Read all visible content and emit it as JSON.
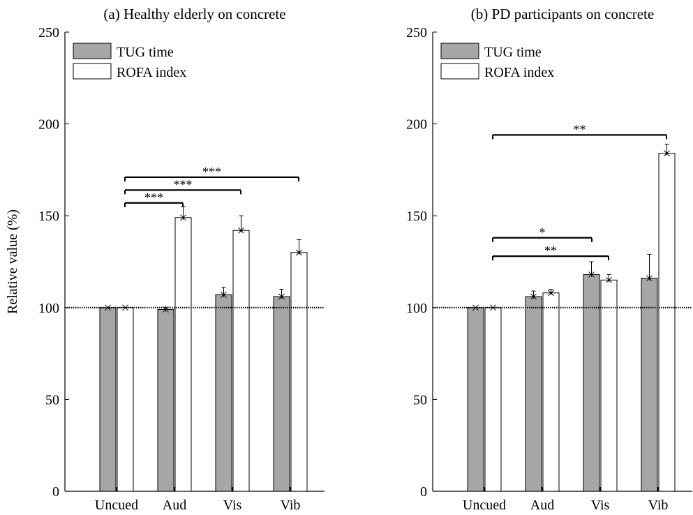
{
  "ylabel": "Relative value (%)",
  "legend_entries": [
    "TUG time",
    "ROFA index"
  ],
  "colors": {
    "tug": "#a6a6a6",
    "rofa": "#ffffff",
    "line": "#000000"
  },
  "chart_data": [
    {
      "type": "bar",
      "title": "(a) Healthy elderly on concrete",
      "categories": [
        "Uncued",
        "Aud",
        "Vis",
        "Vib"
      ],
      "ylim": [
        0,
        250
      ],
      "yticks": [
        0,
        50,
        100,
        150,
        200,
        250
      ],
      "reference_line": 100,
      "legend": "top-left",
      "series": [
        {
          "name": "TUG time",
          "values": [
            100,
            99,
            107,
            106
          ],
          "errors": [
            0,
            1,
            4,
            4
          ]
        },
        {
          "name": "ROFA index",
          "values": [
            100,
            149,
            142,
            130
          ],
          "errors": [
            0,
            6,
            8,
            7
          ]
        }
      ],
      "annotations": [
        {
          "from": "Uncued",
          "to": "Aud",
          "label": "***",
          "y": 157
        },
        {
          "from": "Uncued",
          "to": "Vis",
          "label": "***",
          "y": 164
        },
        {
          "from": "Uncued",
          "to": "Vib",
          "label": "***",
          "y": 171
        }
      ]
    },
    {
      "type": "bar",
      "title": "(b) PD participants on concrete",
      "categories": [
        "Uncued",
        "Aud",
        "Vis",
        "Vib"
      ],
      "ylim": [
        0,
        250
      ],
      "yticks": [
        0,
        50,
        100,
        150,
        200,
        250
      ],
      "reference_line": 100,
      "legend": "top-left",
      "series": [
        {
          "name": "TUG time",
          "values": [
            100,
            106,
            118,
            116
          ],
          "errors": [
            0,
            3,
            7,
            13
          ]
        },
        {
          "name": "ROFA index",
          "values": [
            100,
            108,
            115,
            184
          ],
          "errors": [
            0,
            2,
            3,
            5
          ]
        }
      ],
      "annotations": [
        {
          "from": "Uncued",
          "to": "Vib",
          "label": "**",
          "y": 194
        },
        {
          "from": "Uncued",
          "to": "Vis",
          "label": "*",
          "y": 138,
          "from_series": 0,
          "to_series": 0
        },
        {
          "from": "Uncued",
          "to": "Vis",
          "label": "**",
          "y": 128
        }
      ]
    }
  ]
}
